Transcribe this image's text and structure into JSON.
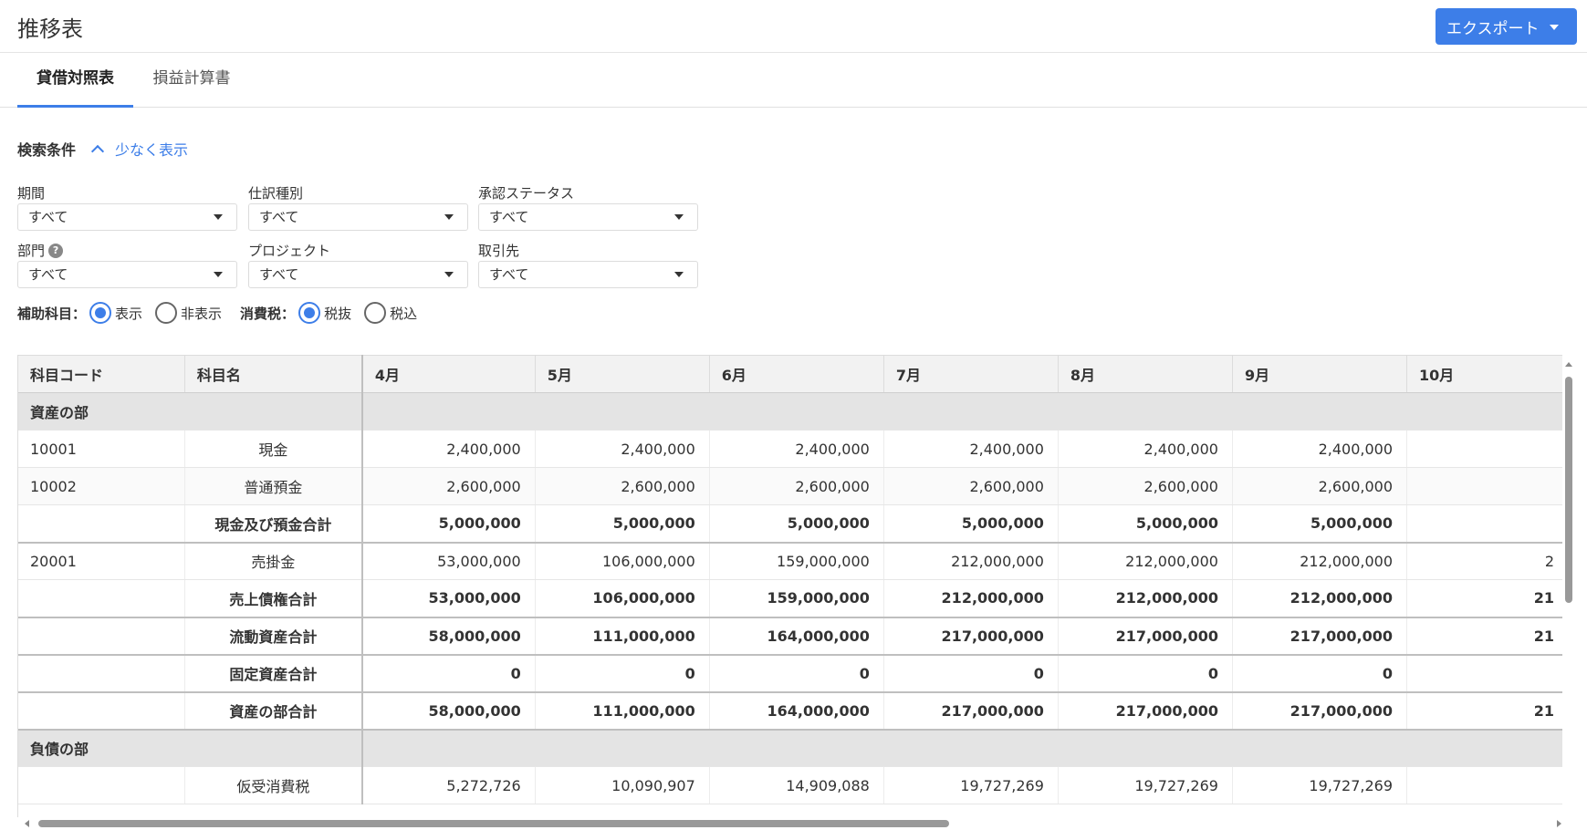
{
  "header": {
    "title": "推移表",
    "export_label": "エクスポート"
  },
  "tabs": [
    {
      "label": "貸借対照表",
      "active": true
    },
    {
      "label": "損益計算書",
      "active": false
    }
  ],
  "search": {
    "title": "検索条件",
    "less_label": "少なく表示",
    "fields": {
      "period": {
        "label": "期間",
        "value": "すべて"
      },
      "journal_type": {
        "label": "仕訳種別",
        "value": "すべて"
      },
      "approval": {
        "label": "承認ステータス",
        "value": "すべて"
      },
      "department": {
        "label": "部門",
        "value": "すべて"
      },
      "project": {
        "label": "プロジェクト",
        "value": "すべて"
      },
      "partner": {
        "label": "取引先",
        "value": "すべて"
      }
    },
    "sub_account": {
      "label": "補助科目：",
      "options": [
        "表示",
        "非表示"
      ],
      "selected": "表示"
    },
    "tax": {
      "label": "消費税：",
      "options": [
        "税抜",
        "税込"
      ],
      "selected": "税抜"
    }
  },
  "table": {
    "headers": [
      "科目コード",
      "科目名",
      "4月",
      "5月",
      "6月",
      "7月",
      "8月",
      "9月",
      "10月"
    ],
    "rows": [
      {
        "type": "section",
        "code": "資産の部",
        "name": "",
        "values": []
      },
      {
        "type": "item",
        "code": "10001",
        "name": "現金",
        "values": [
          "2,400,000",
          "2,400,000",
          "2,400,000",
          "2,400,000",
          "2,400,000",
          "2,400,000",
          ""
        ]
      },
      {
        "type": "item",
        "code": "10002",
        "name": "普通預金",
        "values": [
          "2,600,000",
          "2,600,000",
          "2,600,000",
          "2,600,000",
          "2,600,000",
          "2,600,000",
          ""
        ]
      },
      {
        "type": "total",
        "code": "",
        "name": "現金及び預金合計",
        "values": [
          "5,000,000",
          "5,000,000",
          "5,000,000",
          "5,000,000",
          "5,000,000",
          "5,000,000",
          ""
        ]
      },
      {
        "type": "item",
        "code": "20001",
        "name": "売掛金",
        "values": [
          "53,000,000",
          "106,000,000",
          "159,000,000",
          "212,000,000",
          "212,000,000",
          "212,000,000",
          "2"
        ]
      },
      {
        "type": "total",
        "code": "",
        "name": "売上債権合計",
        "values": [
          "53,000,000",
          "106,000,000",
          "159,000,000",
          "212,000,000",
          "212,000,000",
          "212,000,000",
          "21"
        ]
      },
      {
        "type": "total",
        "code": "",
        "name": "流動資産合計",
        "values": [
          "58,000,000",
          "111,000,000",
          "164,000,000",
          "217,000,000",
          "217,000,000",
          "217,000,000",
          "21"
        ]
      },
      {
        "type": "total",
        "code": "",
        "name": "固定資産合計",
        "values": [
          "0",
          "0",
          "0",
          "0",
          "0",
          "0",
          ""
        ]
      },
      {
        "type": "total",
        "code": "",
        "name": "資産の部合計",
        "values": [
          "58,000,000",
          "111,000,000",
          "164,000,000",
          "217,000,000",
          "217,000,000",
          "217,000,000",
          "21"
        ]
      },
      {
        "type": "section",
        "code": "負債の部",
        "name": "",
        "values": []
      },
      {
        "type": "item",
        "code": "",
        "name": "仮受消費税",
        "values": [
          "5,272,726",
          "10,090,907",
          "14,909,088",
          "19,727,269",
          "19,727,269",
          "19,727,269",
          ""
        ]
      }
    ]
  },
  "colors": {
    "accent": "#3d7ee8",
    "section_bg": "#e4e4e4",
    "header_bg": "#f2f2f2"
  }
}
